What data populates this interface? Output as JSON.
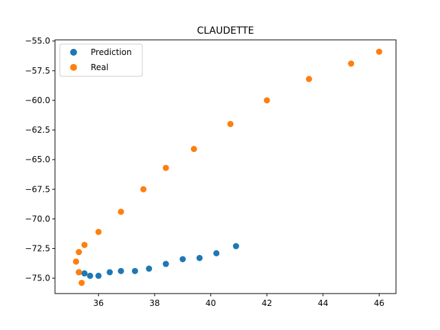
{
  "chart_data": {
    "type": "scatter",
    "title": "CLAUDETTE",
    "xlabel": "",
    "ylabel": "",
    "xlim": [
      34.45,
      46.6
    ],
    "ylim": [
      -76.3,
      -54.9
    ],
    "xticks": [
      36,
      38,
      40,
      42,
      44,
      46
    ],
    "yticks": [
      -55.0,
      -57.5,
      -60.0,
      -62.5,
      -65.0,
      -67.5,
      -70.0,
      -72.5,
      -75.0
    ],
    "xtick_labels": [
      "36",
      "38",
      "40",
      "42",
      "44",
      "46"
    ],
    "ytick_labels": [
      "−55.0",
      "−57.5",
      "−60.0",
      "−62.5",
      "−65.0",
      "−67.5",
      "−70.0",
      "−72.5",
      "−75.0"
    ],
    "grid": false,
    "legend_position": "upper-left",
    "series": [
      {
        "name": "Prediction",
        "color": "#1f77b4",
        "points": [
          [
            35.3,
            -74.5
          ],
          [
            35.5,
            -74.6
          ],
          [
            35.7,
            -74.8
          ],
          [
            36.0,
            -74.8
          ],
          [
            36.4,
            -74.5
          ],
          [
            36.8,
            -74.4
          ],
          [
            37.3,
            -74.4
          ],
          [
            37.8,
            -74.2
          ],
          [
            38.4,
            -73.8
          ],
          [
            39.0,
            -73.4
          ],
          [
            39.6,
            -73.3
          ],
          [
            40.2,
            -72.9
          ],
          [
            40.9,
            -72.3
          ]
        ]
      },
      {
        "name": "Real",
        "color": "#ff7f0e",
        "points": [
          [
            35.3,
            -74.5
          ],
          [
            35.4,
            -75.4
          ],
          [
            35.2,
            -73.6
          ],
          [
            35.3,
            -72.8
          ],
          [
            35.5,
            -72.2
          ],
          [
            36.0,
            -71.1
          ],
          [
            36.8,
            -69.4
          ],
          [
            37.6,
            -67.5
          ],
          [
            38.4,
            -65.7
          ],
          [
            39.4,
            -64.1
          ],
          [
            40.7,
            -62.0
          ],
          [
            42.0,
            -60.0
          ],
          [
            43.5,
            -58.2
          ],
          [
            45.0,
            -56.9
          ],
          [
            46.0,
            -55.9
          ]
        ]
      }
    ]
  }
}
